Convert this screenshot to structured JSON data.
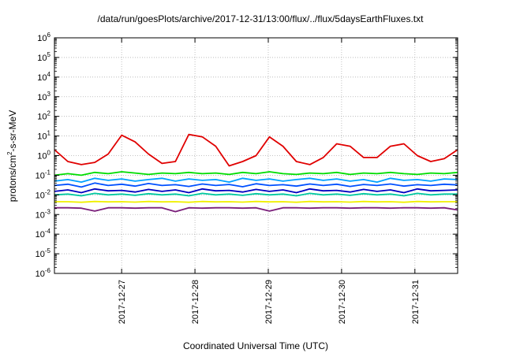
{
  "chart_data": {
    "type": "line",
    "title": "/data/run/goesPlots/archive/2017-12-31/13:00/flux/../flux/5daysEarthFluxes.txt",
    "xlabel": "Coordinated Universal Time (UTC)",
    "ylabel": {
      "prefix": "protons/cm",
      "sup": "2",
      "suffix": "-s-sr-MeV"
    },
    "y_scale": "log",
    "ylim_exponents": [
      -6,
      6
    ],
    "y_tick_base": "10",
    "y_ticks": [
      "-6",
      "-5",
      "-4",
      "-3",
      "-2",
      "-1",
      "0",
      "1",
      "2",
      "3",
      "4",
      "5",
      "6"
    ],
    "x_range": [
      "2017-12-26 02:00",
      "2017-12-31 14:00"
    ],
    "x_ticks": [
      "2017-12-27",
      "2017-12-28",
      "2017-12-29",
      "2017-12-30",
      "2017-12-31"
    ],
    "grid": true,
    "series": [
      {
        "color": "#e00000",
        "values": [
          2.0,
          0.5,
          0.35,
          0.45,
          1.2,
          11,
          5,
          1.2,
          0.4,
          0.5,
          12,
          9,
          3,
          0.3,
          0.5,
          1.0,
          9,
          3,
          0.5,
          0.35,
          0.8,
          4,
          3,
          0.8,
          0.8,
          3,
          4,
          1,
          0.5,
          0.7,
          2.0
        ]
      },
      {
        "color": "#00dd00",
        "values": [
          0.1,
          0.12,
          0.1,
          0.14,
          0.12,
          0.15,
          0.13,
          0.11,
          0.13,
          0.12,
          0.14,
          0.12,
          0.13,
          0.11,
          0.14,
          0.12,
          0.15,
          0.12,
          0.11,
          0.13,
          0.12,
          0.14,
          0.11,
          0.13,
          0.12,
          0.14,
          0.12,
          0.11,
          0.13,
          0.12,
          0.14
        ]
      },
      {
        "color": "#00a0ff",
        "values": [
          0.05,
          0.06,
          0.045,
          0.07,
          0.055,
          0.065,
          0.05,
          0.06,
          0.07,
          0.05,
          0.065,
          0.055,
          0.06,
          0.045,
          0.07,
          0.055,
          0.065,
          0.05,
          0.06,
          0.07,
          0.055,
          0.065,
          0.05,
          0.06,
          0.045,
          0.07,
          0.055,
          0.06,
          0.05,
          0.065,
          0.06
        ]
      },
      {
        "color": "#0050ff",
        "values": [
          0.03,
          0.035,
          0.025,
          0.04,
          0.03,
          0.035,
          0.028,
          0.038,
          0.03,
          0.033,
          0.027,
          0.036,
          0.03,
          0.034,
          0.026,
          0.037,
          0.03,
          0.033,
          0.028,
          0.036,
          0.03,
          0.035,
          0.027,
          0.034,
          0.03,
          0.036,
          0.028,
          0.033,
          0.03,
          0.035,
          0.032
        ]
      },
      {
        "color": "#0000c0",
        "values": [
          0.015,
          0.018,
          0.013,
          0.02,
          0.016,
          0.017,
          0.014,
          0.019,
          0.015,
          0.018,
          0.013,
          0.02,
          0.016,
          0.017,
          0.014,
          0.019,
          0.015,
          0.018,
          0.013,
          0.02,
          0.016,
          0.017,
          0.014,
          0.019,
          0.015,
          0.018,
          0.013,
          0.02,
          0.016,
          0.017,
          0.018
        ]
      },
      {
        "color": "#00c8a0",
        "values": [
          0.01,
          0.011,
          0.009,
          0.012,
          0.01,
          0.011,
          0.0095,
          0.0115,
          0.01,
          0.011,
          0.009,
          0.012,
          0.01,
          0.011,
          0.0095,
          0.0115,
          0.01,
          0.011,
          0.009,
          0.012,
          0.01,
          0.011,
          0.0095,
          0.0115,
          0.01,
          0.011,
          0.009,
          0.012,
          0.01,
          0.011,
          0.011
        ]
      },
      {
        "color": "#f0f000",
        "values": [
          0.0045,
          0.0045,
          0.0042,
          0.0046,
          0.0044,
          0.0045,
          0.0043,
          0.0046,
          0.0044,
          0.0045,
          0.0042,
          0.0046,
          0.0044,
          0.0045,
          0.0043,
          0.0046,
          0.0044,
          0.0045,
          0.0042,
          0.0046,
          0.0044,
          0.0045,
          0.0043,
          0.0046,
          0.0044,
          0.0045,
          0.0042,
          0.0046,
          0.0044,
          0.0045,
          0.0045
        ]
      },
      {
        "color": "#7a1f7a",
        "values": [
          0.0022,
          0.0022,
          0.0021,
          0.0015,
          0.0022,
          0.0022,
          0.0021,
          0.0022,
          0.0022,
          0.0014,
          0.0022,
          0.0021,
          0.0022,
          0.0022,
          0.0021,
          0.0022,
          0.0015,
          0.0022,
          0.0022,
          0.0021,
          0.0022,
          0.0022,
          0.0021,
          0.0022,
          0.0022,
          0.0021,
          0.0022,
          0.0022,
          0.0021,
          0.0022,
          0.0017
        ]
      }
    ]
  }
}
